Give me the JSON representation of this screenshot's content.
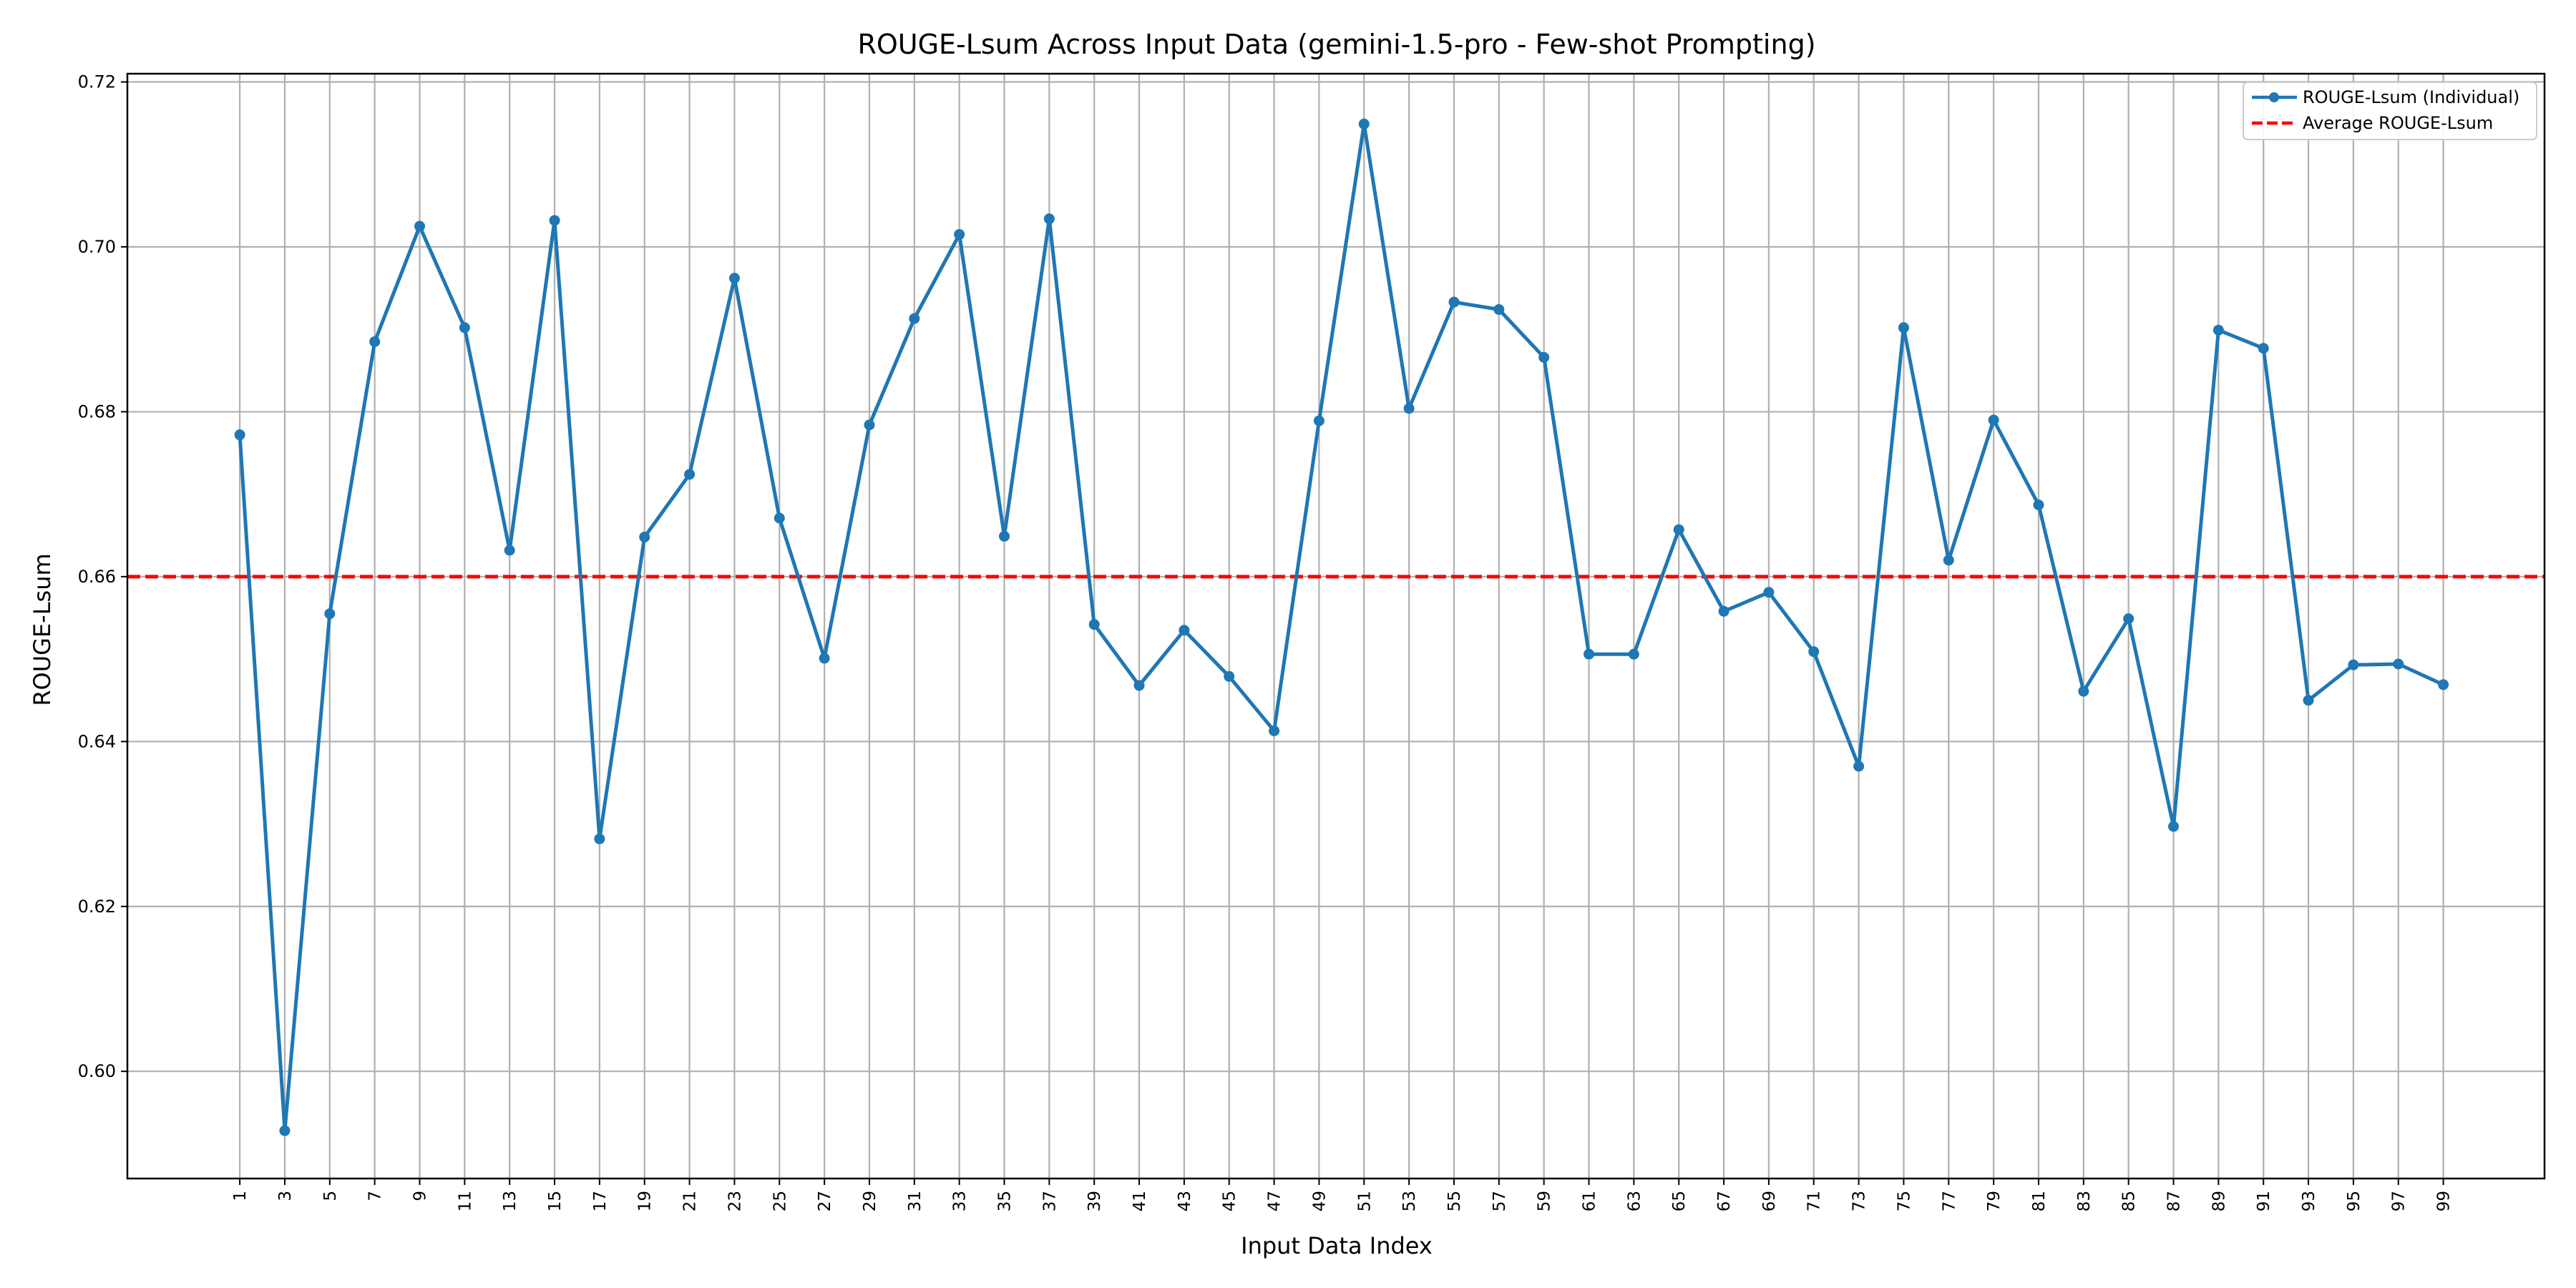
{
  "chart_data": {
    "type": "line",
    "title": "ROUGE-Lsum Across Input Data (gemini-1.5-pro - Few-shot Prompting)",
    "xlabel": "Input Data Index",
    "ylabel": "ROUGE-Lsum",
    "x": [
      1,
      3,
      5,
      7,
      9,
      11,
      13,
      15,
      17,
      19,
      21,
      23,
      25,
      27,
      29,
      31,
      33,
      35,
      37,
      39,
      41,
      43,
      45,
      47,
      49,
      51,
      53,
      55,
      57,
      59,
      61,
      63,
      65,
      67,
      69,
      71,
      73,
      75,
      77,
      79,
      81,
      83,
      85,
      87,
      89,
      91,
      93,
      95,
      97,
      99
    ],
    "xticks": [
      "1",
      "3",
      "5",
      "7",
      "9",
      "11",
      "13",
      "15",
      "17",
      "19",
      "21",
      "23",
      "25",
      "27",
      "29",
      "31",
      "33",
      "35",
      "37",
      "39",
      "41",
      "43",
      "45",
      "47",
      "49",
      "51",
      "53",
      "55",
      "57",
      "59",
      "61",
      "63",
      "65",
      "67",
      "69",
      "71",
      "73",
      "75",
      "77",
      "79",
      "81",
      "83",
      "85",
      "87",
      "89",
      "91",
      "93",
      "95",
      "97",
      "99"
    ],
    "xlim": [
      -4.0,
      103.5
    ],
    "ylim": [
      0.587,
      0.721
    ],
    "yticks": [
      "0.60",
      "0.62",
      "0.64",
      "0.66",
      "0.68",
      "0.70",
      "0.72"
    ],
    "ytick_values": [
      0.6,
      0.62,
      0.64,
      0.66,
      0.68,
      0.7,
      0.72
    ],
    "grid": true,
    "legend_position": "top-right",
    "series": [
      {
        "name": "ROUGE-Lsum (Individual)",
        "color": "#1f77b4",
        "style": "solid-with-markers",
        "values": [
          0.6772,
          0.5928,
          0.6555,
          0.6885,
          0.7025,
          0.6902,
          0.6632,
          0.7032,
          0.6282,
          0.6648,
          0.6724,
          0.6962,
          0.6671,
          0.6501,
          0.6784,
          0.6913,
          0.7015,
          0.6649,
          0.7034,
          0.6542,
          0.6468,
          0.6535,
          0.6479,
          0.6413,
          0.6789,
          0.7149,
          0.6804,
          0.6933,
          0.6924,
          0.6866,
          0.6506,
          0.6506,
          0.6657,
          0.6558,
          0.6581,
          0.6509,
          0.637,
          0.6902,
          0.662,
          0.679,
          0.6687,
          0.6461,
          0.6549,
          0.6297,
          0.6899,
          0.6877,
          0.645,
          0.6493,
          0.6494,
          0.6469
        ]
      },
      {
        "name": "Average ROUGE-Lsum",
        "color": "#ff0000",
        "style": "dashed",
        "value": 0.66
      }
    ]
  }
}
